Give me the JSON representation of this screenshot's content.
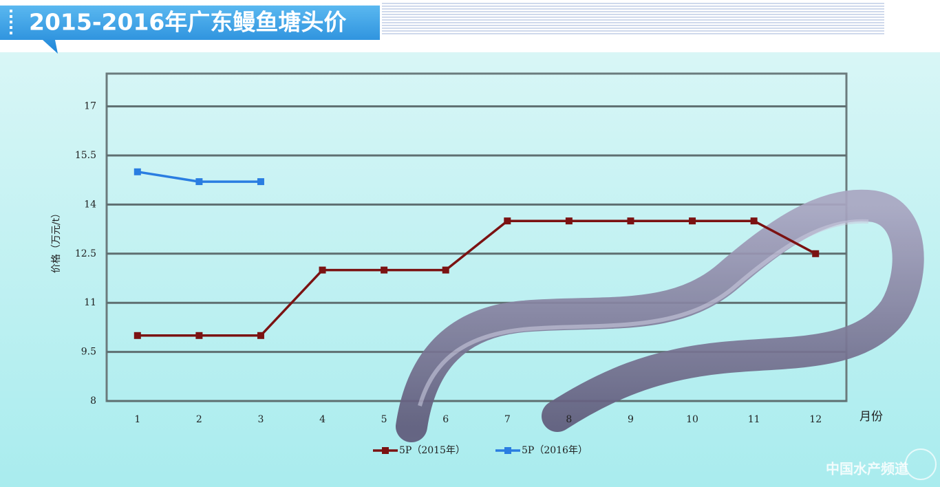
{
  "chart_data": {
    "type": "line",
    "title": "2015-2016年广东鳗鱼塘头价",
    "y_label": "价格（万元/t）",
    "x_label": "月份",
    "categories": [
      "1",
      "2",
      "3",
      "4",
      "5",
      "6",
      "7",
      "8",
      "9",
      "10",
      "11",
      "12"
    ],
    "series": [
      {
        "name": "5P（2015年）",
        "color": "#7b1212",
        "values": [
          10,
          10,
          10,
          12,
          12,
          12,
          13.5,
          13.5,
          13.5,
          13.5,
          13.5,
          12.5
        ]
      },
      {
        "name": "5P（2016年）",
        "color": "#2a7de1",
        "values": [
          15,
          14.7,
          14.7,
          null,
          null,
          null,
          null,
          null,
          null,
          null,
          null,
          null
        ]
      }
    ],
    "ylim": [
      8,
      18
    ],
    "yticks": [
      8,
      9.5,
      11,
      12.5,
      14,
      15.5,
      17
    ],
    "grid": true
  },
  "watermark": "中国水产频道"
}
